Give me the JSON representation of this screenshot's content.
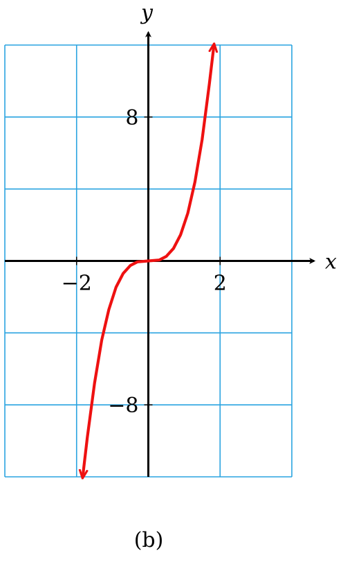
{
  "chart_data": {
    "type": "line",
    "xlabel": "x",
    "ylabel": "y",
    "xlim": [
      -4,
      4
    ],
    "ylim": [
      -12,
      12
    ],
    "x_grid_step": 2,
    "y_grid_step": 4,
    "grid": true,
    "x_ticks": [
      {
        "value": -2,
        "label": "−2"
      },
      {
        "value": 2,
        "label": "2"
      }
    ],
    "y_ticks": [
      {
        "value": 8,
        "label": "8"
      },
      {
        "value": -8,
        "label": "−8"
      }
    ],
    "series": [
      {
        "x": [
          -1.83,
          -1.7,
          -1.5,
          -1.3,
          -1.1,
          -0.9,
          -0.7,
          -0.5,
          -0.3,
          0,
          0.3,
          0.5,
          0.7,
          0.9,
          1.1,
          1.3,
          1.5,
          1.7,
          1.83
        ],
        "y": [
          -12,
          -9.8,
          -6.8,
          -4.4,
          -2.7,
          -1.46,
          -0.69,
          -0.25,
          -0.05,
          0,
          0.05,
          0.25,
          0.69,
          1.46,
          2.66,
          4.39,
          6.75,
          9.83,
          12
        ],
        "arrows": "both"
      }
    ]
  },
  "caption": "(b)",
  "colors": {
    "grid": "#29a3e0",
    "curve": "#ee1111",
    "axis": "#000000"
  }
}
